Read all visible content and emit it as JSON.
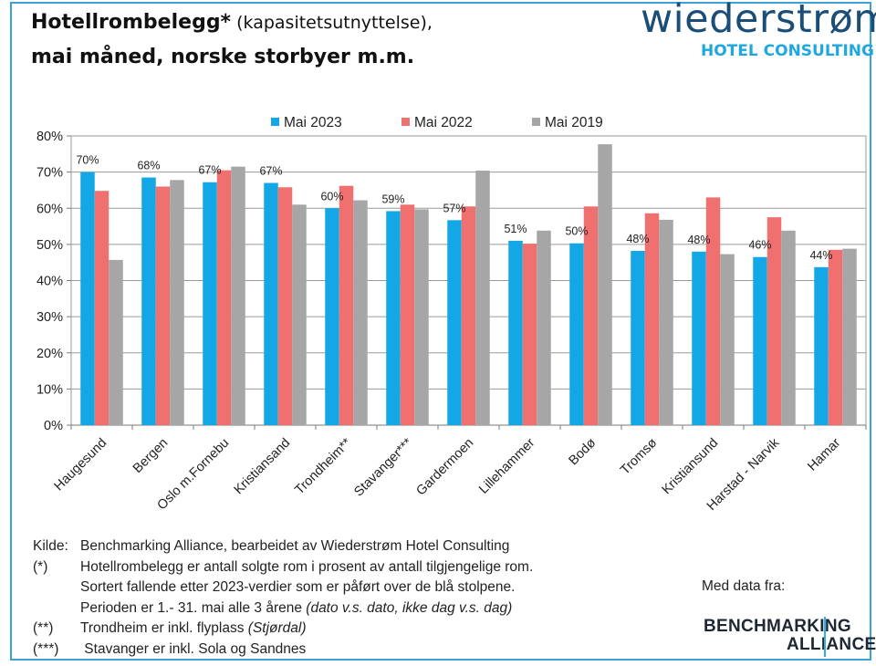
{
  "header": {
    "title_bold": "Hotellrombelegg*",
    "title_sub": " (kapasitetsutnyttelse),",
    "title_line2": "mai måned, norske storbyer m.m."
  },
  "brand": {
    "name": "wiederstrøm",
    "sub": "HOTEL CONSULTING"
  },
  "colors": {
    "mai2023": "#14a7e6",
    "mai2022": "#f07070",
    "mai2019": "#a6a6a6",
    "frame": "#3aa2d6"
  },
  "chart_data": {
    "type": "bar",
    "categories": [
      "Haugesund",
      "Bergen",
      "Oslo m.Fornebu",
      "Kristiansand",
      "Trondheim**",
      "Stavanger***",
      "Gardermoen",
      "Lillehammer",
      "Bodø",
      "Tromsø",
      "Kristiansund",
      "Harstad - Narvik",
      "Hamar"
    ],
    "series": [
      {
        "name": "Mai 2023",
        "values": [
          70,
          68.5,
          67.2,
          67,
          60,
          59.2,
          56.7,
          51,
          50.3,
          48.2,
          48,
          46.5,
          43.7
        ]
      },
      {
        "name": "Mai 2022",
        "values": [
          64.8,
          66,
          70.5,
          65.8,
          66.2,
          61,
          60.5,
          50.2,
          60.5,
          58.6,
          63,
          57.5,
          48.5
        ]
      },
      {
        "name": "Mai 2019",
        "values": [
          45.7,
          67.8,
          71.5,
          61,
          62.2,
          59.7,
          70.4,
          53.8,
          77.7,
          56.8,
          47.3,
          53.8,
          48.8
        ]
      }
    ],
    "data_labels": [
      "70%",
      "68%",
      "67%",
      "67%",
      "60%",
      "59%",
      "57%",
      "51%",
      "50%",
      "48%",
      "48%",
      "46%",
      "44%"
    ],
    "y_ticks": [
      "0%",
      "10%",
      "20%",
      "30%",
      "40%",
      "50%",
      "60%",
      "70%",
      "80%"
    ],
    "ylim": [
      0,
      80
    ],
    "title": "",
    "xlabel": "",
    "ylabel": "",
    "legend": "top",
    "grid": true
  },
  "notes": {
    "kilde_key": "Kilde:",
    "kilde_text": "Benchmarking  Alliance,    bearbeidet  av  Wiederstrøm Hotel Consulting",
    "star_key": "(*)",
    "star_text": "Hotellrombelegg  er antall solgte rom i prosent  av antall tilgjengelige rom.",
    "star_line2": "Sortert fallende etter  2023-verdier som er påført over de blå  stolpene.",
    "star_line3": "Perioden er 1.- 31. mai alle 3 årene ",
    "star_line3_italic": "(dato v.s. dato, ikke dag v.s. dag)",
    "dstar_key": "(**)",
    "dstar_text": "Trondheim er inkl. flyplass ",
    "dstar_italic": "(Stjørdal)",
    "tstar_key": "(***)",
    "tstar_text": " Stavanger  er  inkl.  Sola og Sandnes"
  },
  "footer": {
    "med_data": "Med data fra:",
    "ba_line1": "BENCHMARKING",
    "ba_line2": "ALLIANCE"
  }
}
